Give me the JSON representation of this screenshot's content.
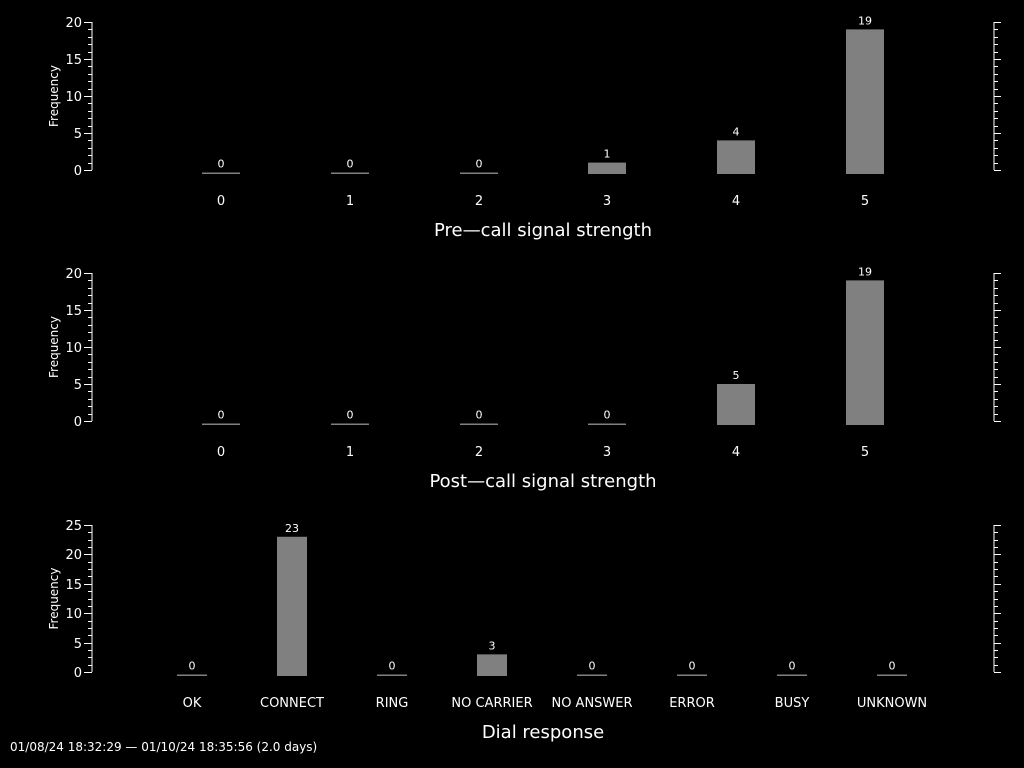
{
  "footer": "01/08/24 18:32:29 — 01/10/24 18:35:56 (2.0 days)",
  "colors": {
    "background": "#000000",
    "axis": "#ffffff",
    "bar": "#808080",
    "text": "#ffffff"
  },
  "chart_data": [
    {
      "type": "bar",
      "xlabel": "Pre—call signal strength",
      "ylabel": "Frequency",
      "categories": [
        "0",
        "1",
        "2",
        "3",
        "4",
        "5"
      ],
      "values": [
        0,
        0,
        0,
        1,
        4,
        19
      ],
      "data_labels": [
        "0",
        "0",
        "0",
        "1",
        "4",
        "19"
      ],
      "ylim": [
        0,
        20
      ],
      "yticks": [
        0,
        5,
        10,
        15,
        20
      ],
      "grid": false
    },
    {
      "type": "bar",
      "xlabel": "Post—call signal strength",
      "ylabel": "Frequency",
      "categories": [
        "0",
        "1",
        "2",
        "3",
        "4",
        "5"
      ],
      "values": [
        0,
        0,
        0,
        0,
        5,
        19
      ],
      "data_labels": [
        "0",
        "0",
        "0",
        "0",
        "5",
        "19"
      ],
      "ylim": [
        0,
        20
      ],
      "yticks": [
        0,
        5,
        10,
        15,
        20
      ],
      "grid": false
    },
    {
      "type": "bar",
      "xlabel": "Dial response",
      "ylabel": "Frequency",
      "categories": [
        "OK",
        "CONNECT",
        "RING",
        "NO CARRIER",
        "NO ANSWER",
        "ERROR",
        "BUSY",
        "UNKNOWN"
      ],
      "values": [
        0,
        23,
        0,
        3,
        0,
        0,
        0,
        0
      ],
      "data_labels": [
        "0",
        "23",
        "0",
        "3",
        "0",
        "0",
        "0",
        "0"
      ],
      "ylim": [
        0,
        25
      ],
      "yticks": [
        0,
        5,
        10,
        15,
        20,
        25
      ],
      "grid": false
    }
  ]
}
